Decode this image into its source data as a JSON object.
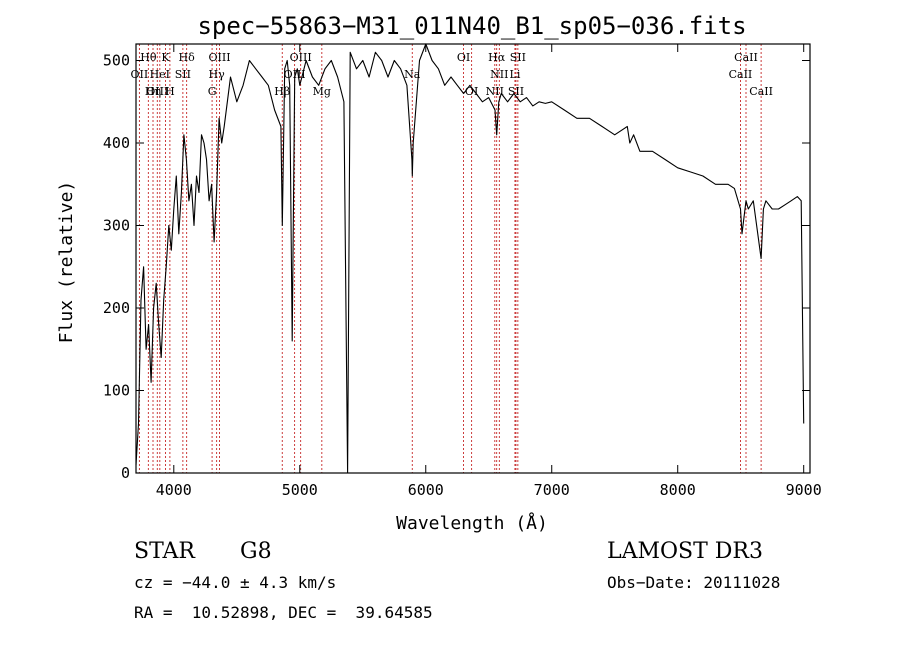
{
  "chart_data": {
    "type": "line",
    "title": "spec−55863−M31_011N40_B1_sp05−036.fits",
    "xlabel": "Wavelength (Å)",
    "ylabel": "Flux (relative)",
    "xlim": [
      3700,
      9050
    ],
    "ylim": [
      0,
      520
    ],
    "xticks": [
      4000,
      5000,
      6000,
      7000,
      8000,
      9000
    ],
    "yticks": [
      0,
      100,
      200,
      300,
      400,
      500
    ],
    "grid": false,
    "series": [
      {
        "name": "flux",
        "x": [
          3700,
          3720,
          3740,
          3760,
          3780,
          3800,
          3820,
          3840,
          3860,
          3880,
          3900,
          3920,
          3940,
          3960,
          3980,
          4000,
          4020,
          4040,
          4060,
          4080,
          4100,
          4120,
          4140,
          4160,
          4180,
          4200,
          4220,
          4240,
          4260,
          4280,
          4300,
          4320,
          4340,
          4360,
          4380,
          4400,
          4450,
          4500,
          4550,
          4600,
          4650,
          4700,
          4750,
          4800,
          4850,
          4861,
          4880,
          4900,
          4920,
          4940,
          4960,
          4980,
          5000,
          5050,
          5100,
          5150,
          5200,
          5250,
          5300,
          5350,
          5380,
          5400,
          5450,
          5500,
          5550,
          5600,
          5650,
          5700,
          5750,
          5800,
          5850,
          5890,
          5893,
          5900,
          5950,
          6000,
          6050,
          6100,
          6150,
          6200,
          6250,
          6300,
          6350,
          6400,
          6450,
          6500,
          6550,
          6563,
          6580,
          6600,
          6650,
          6700,
          6750,
          6800,
          6850,
          6900,
          6950,
          7000,
          7100,
          7200,
          7300,
          7400,
          7500,
          7600,
          7620,
          7650,
          7700,
          7800,
          7900,
          8000,
          8100,
          8200,
          8300,
          8400,
          8450,
          8498,
          8510,
          8542,
          8560,
          8600,
          8662,
          8680,
          8700,
          8750,
          8800,
          8850,
          8900,
          8950,
          8980,
          9000
        ],
        "values": [
          10,
          60,
          210,
          250,
          150,
          180,
          110,
          200,
          230,
          180,
          140,
          210,
          250,
          300,
          270,
          320,
          360,
          290,
          340,
          410,
          380,
          330,
          350,
          300,
          360,
          340,
          410,
          400,
          380,
          330,
          350,
          280,
          340,
          430,
          400,
          420,
          480,
          450,
          470,
          500,
          490,
          480,
          470,
          440,
          420,
          300,
          490,
          500,
          470,
          160,
          480,
          490,
          470,
          500,
          480,
          470,
          490,
          500,
          480,
          450,
          0,
          510,
          490,
          500,
          480,
          510,
          500,
          480,
          500,
          490,
          470,
          380,
          360,
          400,
          500,
          520,
          500,
          490,
          470,
          480,
          470,
          460,
          470,
          460,
          450,
          455,
          440,
          410,
          450,
          460,
          450,
          460,
          450,
          455,
          445,
          450,
          448,
          450,
          440,
          430,
          430,
          420,
          410,
          420,
          400,
          410,
          390,
          390,
          380,
          370,
          365,
          360,
          350,
          350,
          345,
          320,
          290,
          330,
          320,
          330,
          260,
          320,
          330,
          320,
          320,
          325,
          330,
          335,
          330,
          60
        ]
      }
    ],
    "line_labels": [
      {
        "text": "Hθ",
        "x": 3798,
        "row": 0
      },
      {
        "text": "OII",
        "x": 3727,
        "row": 1
      },
      {
        "text": "OIII",
        "x": 3869,
        "row": 2
      },
      {
        "text": "K",
        "x": 3934,
        "row": 0
      },
      {
        "text": "HeI",
        "x": 3889,
        "row": 1
      },
      {
        "text": "Hη",
        "x": 3835,
        "row": 2
      },
      {
        "text": "Hδ",
        "x": 4102,
        "row": 0
      },
      {
        "text": "SII",
        "x": 4072,
        "row": 1
      },
      {
        "text": "H",
        "x": 3969,
        "row": 2
      },
      {
        "text": "OIII",
        "x": 4363,
        "row": 0
      },
      {
        "text": "Hγ",
        "x": 4340,
        "row": 1
      },
      {
        "text": "G",
        "x": 4304,
        "row": 2
      },
      {
        "text": "OIII",
        "x": 5007,
        "row": 0
      },
      {
        "text": "OIII",
        "x": 4959,
        "row": 1
      },
      {
        "text": "Hβ",
        "x": 4861,
        "row": 2
      },
      {
        "text": "Mg",
        "x": 5175,
        "row": 2
      },
      {
        "text": "Na",
        "x": 5893,
        "row": 1
      },
      {
        "text": "OI",
        "x": 6300,
        "row": 0
      },
      {
        "text": "OI",
        "x": 6364,
        "row": 2
      },
      {
        "text": "Hα",
        "x": 6563,
        "row": 0
      },
      {
        "text": "NII",
        "x": 6584,
        "row": 1
      },
      {
        "text": "NII",
        "x": 6548,
        "row": 2
      },
      {
        "text": "SII",
        "x": 6731,
        "row": 0
      },
      {
        "text": "Li",
        "x": 6708,
        "row": 1
      },
      {
        "text": "SII",
        "x": 6716,
        "row": 2
      },
      {
        "text": "CaII",
        "x": 8542,
        "row": 0
      },
      {
        "text": "CaII",
        "x": 8498,
        "row": 1
      },
      {
        "text": "CaII",
        "x": 8662,
        "row": 2
      }
    ],
    "line_markers": [
      3727,
      3798,
      3835,
      3869,
      3889,
      3934,
      3969,
      4072,
      4102,
      4304,
      4340,
      4363,
      4861,
      4959,
      5007,
      5175,
      5893,
      6300,
      6364,
      6548,
      6563,
      6584,
      6708,
      6716,
      6731,
      8498,
      8542,
      8662
    ]
  },
  "info": {
    "class": "STAR",
    "subclass": "G8",
    "survey": "LAMOST DR3",
    "cz": "cz = −44.0 ± 4.3 km/s",
    "obs_date": "Obs−Date: 20111028",
    "coords": "RA =  10.52898, DEC =  39.64585"
  }
}
